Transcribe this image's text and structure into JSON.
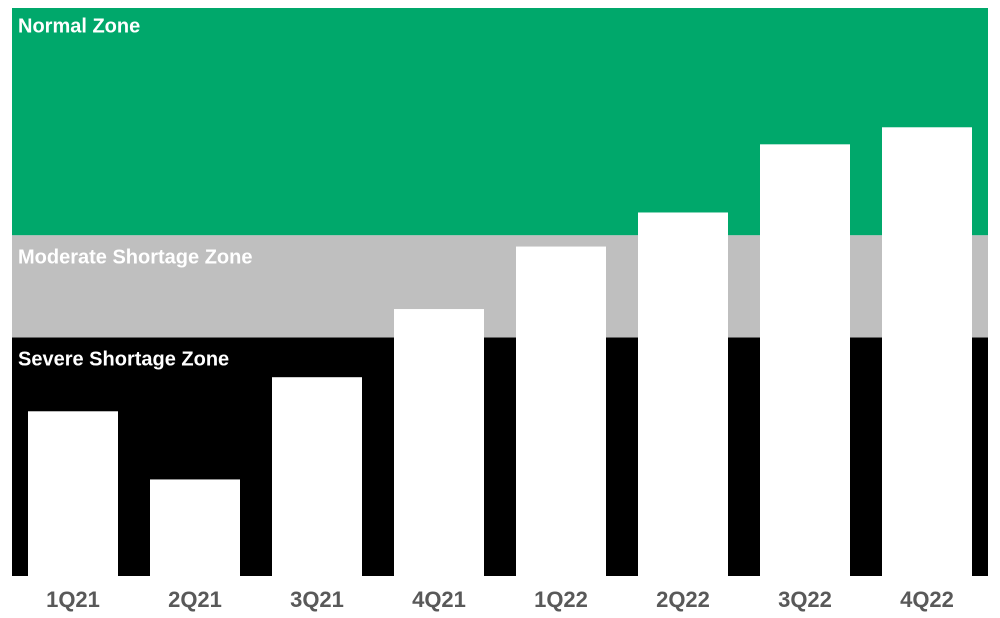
{
  "chart_data": {
    "type": "bar",
    "categories": [
      "1Q21",
      "2Q21",
      "3Q21",
      "4Q21",
      "1Q22",
      "2Q22",
      "3Q22",
      "4Q22"
    ],
    "values": [
      29,
      17,
      35,
      47,
      58,
      64,
      76,
      79
    ],
    "color": "#ffffff",
    "ylim": [
      0,
      100
    ],
    "zones": [
      {
        "name": "Severe Shortage Zone",
        "from": 0,
        "to": 42,
        "color": "#000000"
      },
      {
        "name": "Moderate Shortage Zone",
        "from": 42,
        "to": 60,
        "color": "#bfbfbf"
      },
      {
        "name": "Normal Zone",
        "from": 60,
        "to": 100,
        "color": "#00a86b"
      }
    ]
  }
}
